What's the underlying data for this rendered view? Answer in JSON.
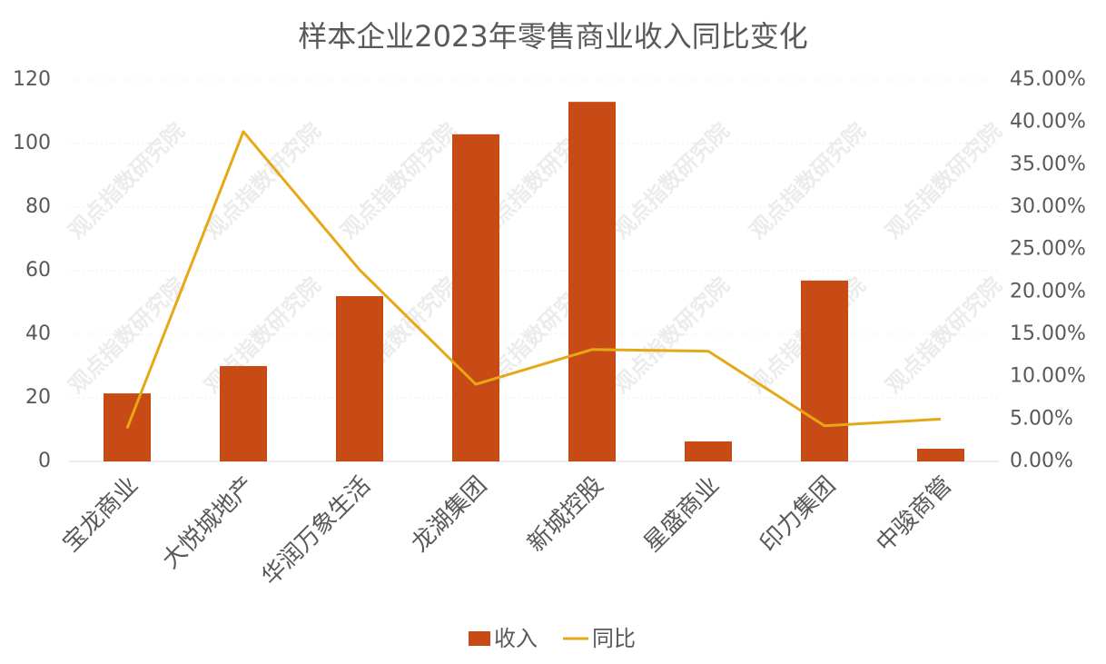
{
  "chart_data": {
    "type": "bar_line",
    "title": "样本企业2023年零售商业收入同比变化",
    "watermark": "观点指数研究院",
    "categories": [
      "宝龙商业",
      "大悦城地产",
      "华润万象生活",
      "龙湖集团",
      "新城控股",
      "星盛商业",
      "印力集团",
      "中骏商管"
    ],
    "series": [
      {
        "name": "收入",
        "type": "bar",
        "color": "#c84b16",
        "values": [
          21.4,
          30,
          52,
          102.9,
          113.1,
          6.3,
          56.9,
          4.0
        ]
      },
      {
        "name": "同比",
        "type": "line",
        "axis": "y2",
        "color": "#e6a817",
        "values": [
          3.9,
          38.9,
          22.6,
          9.1,
          13.2,
          13.0,
          4.2,
          5.0
        ]
      }
    ],
    "ylim": [
      0,
      120
    ],
    "yticks": [
      0,
      20,
      40,
      60,
      80,
      100,
      120
    ],
    "y2lim": [
      0,
      45
    ],
    "y2ticks": [
      {
        "value": 0,
        "label": "0.00%"
      },
      {
        "value": 5,
        "label": "5.00%"
      },
      {
        "value": 10,
        "label": "10.00%"
      },
      {
        "value": 15,
        "label": "15.00%"
      },
      {
        "value": 20,
        "label": "20.00%"
      },
      {
        "value": 25,
        "label": "25.00%"
      },
      {
        "value": 30,
        "label": "30.00%"
      },
      {
        "value": 35,
        "label": "35.00%"
      },
      {
        "value": 40,
        "label": "40.00%"
      },
      {
        "value": 45,
        "label": "45.00%"
      }
    ],
    "grid": true
  }
}
